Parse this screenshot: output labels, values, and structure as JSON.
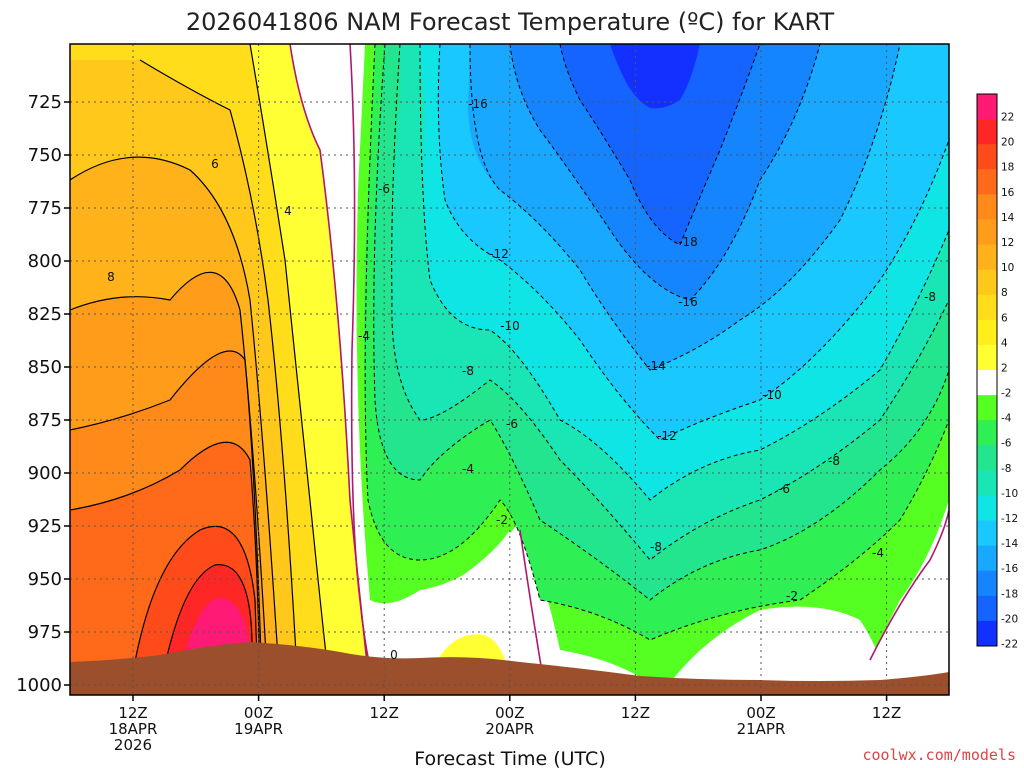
{
  "chart_data": {
    "type": "heatmap",
    "title": "2026041806 NAM Forecast Temperature (ºC) for KART",
    "xlabel": "Forecast Time (UTC)",
    "ylabel": "",
    "y_ticks": [
      "725",
      "750",
      "775",
      "800",
      "825",
      "850",
      "875",
      "900",
      "925",
      "950",
      "975",
      "1000"
    ],
    "x_ticks": [
      {
        "l1": "12Z",
        "l2": "18APR",
        "l3": "2026"
      },
      {
        "l1": "00Z",
        "l2": "19APR",
        "l3": ""
      },
      {
        "l1": "12Z",
        "l2": "",
        "l3": ""
      },
      {
        "l1": "00Z",
        "l2": "20APR",
        "l3": ""
      },
      {
        "l1": "12Z",
        "l2": "",
        "l3": ""
      },
      {
        "l1": "00Z",
        "l2": "21APR",
        "l3": ""
      },
      {
        "l1": "12Z",
        "l2": "",
        "l3": ""
      }
    ],
    "colorbar": {
      "labels": [
        "22",
        "20",
        "18",
        "16",
        "14",
        "12",
        "10",
        "8",
        "6",
        "4",
        "2",
        "-2",
        "-4",
        "-6",
        "-8",
        "-10",
        "-12",
        "-14",
        "-16",
        "-18",
        "-20",
        "-22"
      ],
      "colors": [
        "#ff1a75",
        "#ff2626",
        "#ff4a1a",
        "#ff6a1a",
        "#ff8a1a",
        "#ff9d1a",
        "#ffb21a",
        "#ffc81a",
        "#ffdd1a",
        "#ffee1a",
        "#ffff33",
        "#ffffff",
        "#55ff22",
        "#2ef055",
        "#22e58e",
        "#19e6b4",
        "#10e5e5",
        "#19c8ff",
        "#18a8ff",
        "#1484ff",
        "#1564ff",
        "#1230ff"
      ]
    },
    "contour_labels": [
      "-16",
      "-6",
      "6",
      "4",
      "8",
      "-12",
      "-18",
      "-16",
      "-8",
      "-10",
      "-4",
      "-14",
      "-8",
      "-10",
      "-12",
      "-6",
      "-8",
      "-4",
      "-6",
      "-2",
      "-8",
      "-4",
      "-2",
      "0"
    ],
    "surface_color": "#9c4f2c"
  },
  "credit": "coolwx.com/models"
}
